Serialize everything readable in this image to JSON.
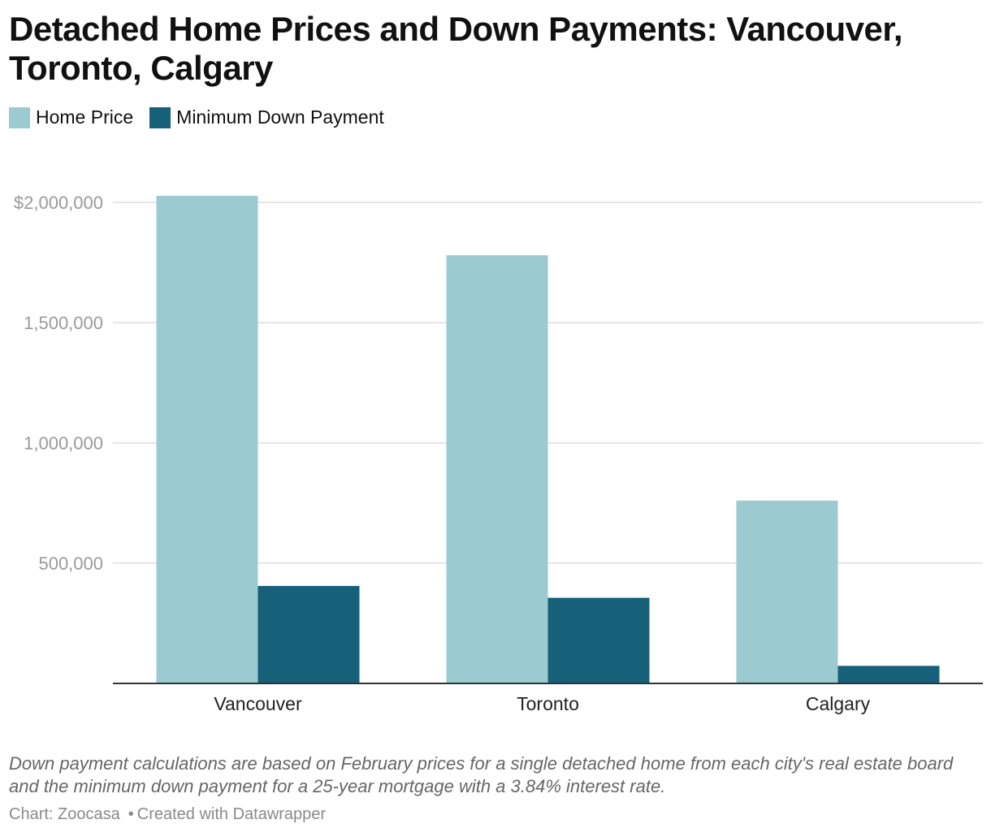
{
  "title": "Detached Home Prices and Down Payments: Vancouver, Toronto, Calgary",
  "notes": "Down payment calculations are based on February prices for a single detached home from each city's real estate board and the minimum down payment for a 25-year mortgage with a 3.84% interest rate.",
  "byline": {
    "source": "Chart: Zoocasa",
    "separator": "•",
    "credit": "Created with Datawrapper"
  },
  "chart_data": {
    "type": "bar",
    "categories": [
      "Vancouver",
      "Toronto",
      "Calgary"
    ],
    "series": [
      {
        "name": "Home Price",
        "color": "#9bcad0",
        "values": [
          2027000,
          1780000,
          760000
        ]
      },
      {
        "name": "Minimum Down Payment",
        "color": "#17607a",
        "values": [
          405000,
          356000,
          73000
        ]
      }
    ],
    "ylim": [
      0,
      2000000
    ],
    "yticks": [
      {
        "value": 500000,
        "label": "500,000"
      },
      {
        "value": 1000000,
        "label": "1,000,000"
      },
      {
        "value": 1500000,
        "label": "1,500,000"
      },
      {
        "value": 2000000,
        "label": "$2,000,000"
      }
    ],
    "grid": true,
    "legend_position": "top-left",
    "xlabel": "",
    "ylabel": ""
  }
}
